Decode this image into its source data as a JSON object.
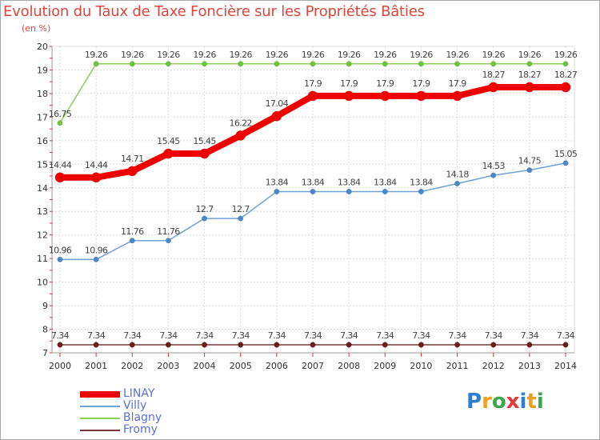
{
  "header": {
    "title": "Evolution du Taux de Taxe Foncière sur les Propriétés Bâties",
    "unit": "(en %)"
  },
  "logo": {
    "text": "Proxiti",
    "letters": [
      {
        "ch": "P",
        "color": "#2f7fd0"
      },
      {
        "ch": "r",
        "color": "#f0a020"
      },
      {
        "ch": "o",
        "color": "#3aa84a"
      },
      {
        "ch": "x",
        "color": "#e03a3a"
      },
      {
        "ch": "i",
        "color": "#2f7fd0"
      },
      {
        "ch": "t",
        "color": "#f0a020"
      },
      {
        "ch": "i",
        "color": "#3aa84a"
      }
    ]
  },
  "chart_data": {
    "type": "line",
    "title": "Evolution du Taux de Taxe Foncière sur les Propriétés Bâties",
    "ylabel": "(en %)",
    "xlabel": "",
    "ylim": [
      7,
      20
    ],
    "yticks": [
      "7",
      "8",
      "9",
      "10",
      "11",
      "12",
      "13",
      "14",
      "15",
      "16",
      "17",
      "18",
      "19",
      "20"
    ],
    "grid": true,
    "legend_position": "bottom-left",
    "categories": [
      "2000",
      "2001",
      "2002",
      "2003",
      "2004",
      "2005",
      "2006",
      "2007",
      "2008",
      "2009",
      "2010",
      "2011",
      "2012",
      "2013",
      "2014"
    ],
    "series": [
      {
        "name": "LINAY",
        "color": "#ee0000",
        "values": [
          14.44,
          14.44,
          14.71,
          15.45,
          15.45,
          16.22,
          17.04,
          17.9,
          17.9,
          17.9,
          17.9,
          17.9,
          18.27,
          18.27,
          18.27
        ],
        "labels": [
          "14.44",
          "14.44",
          "14.71",
          "15.45",
          "15.45",
          "16.22",
          "17.04",
          "17.9",
          "17.9",
          "17.9",
          "17.9",
          "17.9",
          "18.27",
          "18.27",
          "18.27"
        ]
      },
      {
        "name": "Villy",
        "color": "#6ea2d6",
        "values": [
          10.96,
          10.96,
          11.76,
          11.76,
          12.7,
          12.7,
          13.84,
          13.84,
          13.84,
          13.84,
          13.84,
          14.18,
          14.53,
          14.75,
          15.05
        ],
        "labels": [
          "10.96",
          "10.96",
          "11.76",
          "11.76",
          "12.7",
          "12.7",
          "13.84",
          "13.84",
          "13.84",
          "13.84",
          "13.84",
          "14.18",
          "14.53",
          "14.75",
          "15.05"
        ]
      },
      {
        "name": "Blagny",
        "color": "#8cd05a",
        "values": [
          16.75,
          19.26,
          19.26,
          19.26,
          19.26,
          19.26,
          19.26,
          19.26,
          19.26,
          19.26,
          19.26,
          19.26,
          19.26,
          19.26,
          19.26
        ],
        "labels": [
          "16.75",
          "19.26",
          "19.26",
          "19.26",
          "19.26",
          "19.26",
          "19.26",
          "19.26",
          "19.26",
          "19.26",
          "19.26",
          "19.26",
          "19.26",
          "19.26",
          "19.26"
        ]
      },
      {
        "name": "Fromy",
        "color": "#7a3838",
        "values": [
          7.34,
          7.34,
          7.34,
          7.34,
          7.34,
          7.34,
          7.34,
          7.34,
          7.34,
          7.34,
          7.34,
          7.34,
          7.34,
          7.34,
          7.34
        ],
        "labels": [
          "7.34",
          "7.34",
          "7.34",
          "7.34",
          "7.34",
          "7.34",
          "7.34",
          "7.34",
          "7.34",
          "7.34",
          "7.34",
          "7.34",
          "7.34",
          "7.34",
          "7.34"
        ]
      }
    ]
  }
}
